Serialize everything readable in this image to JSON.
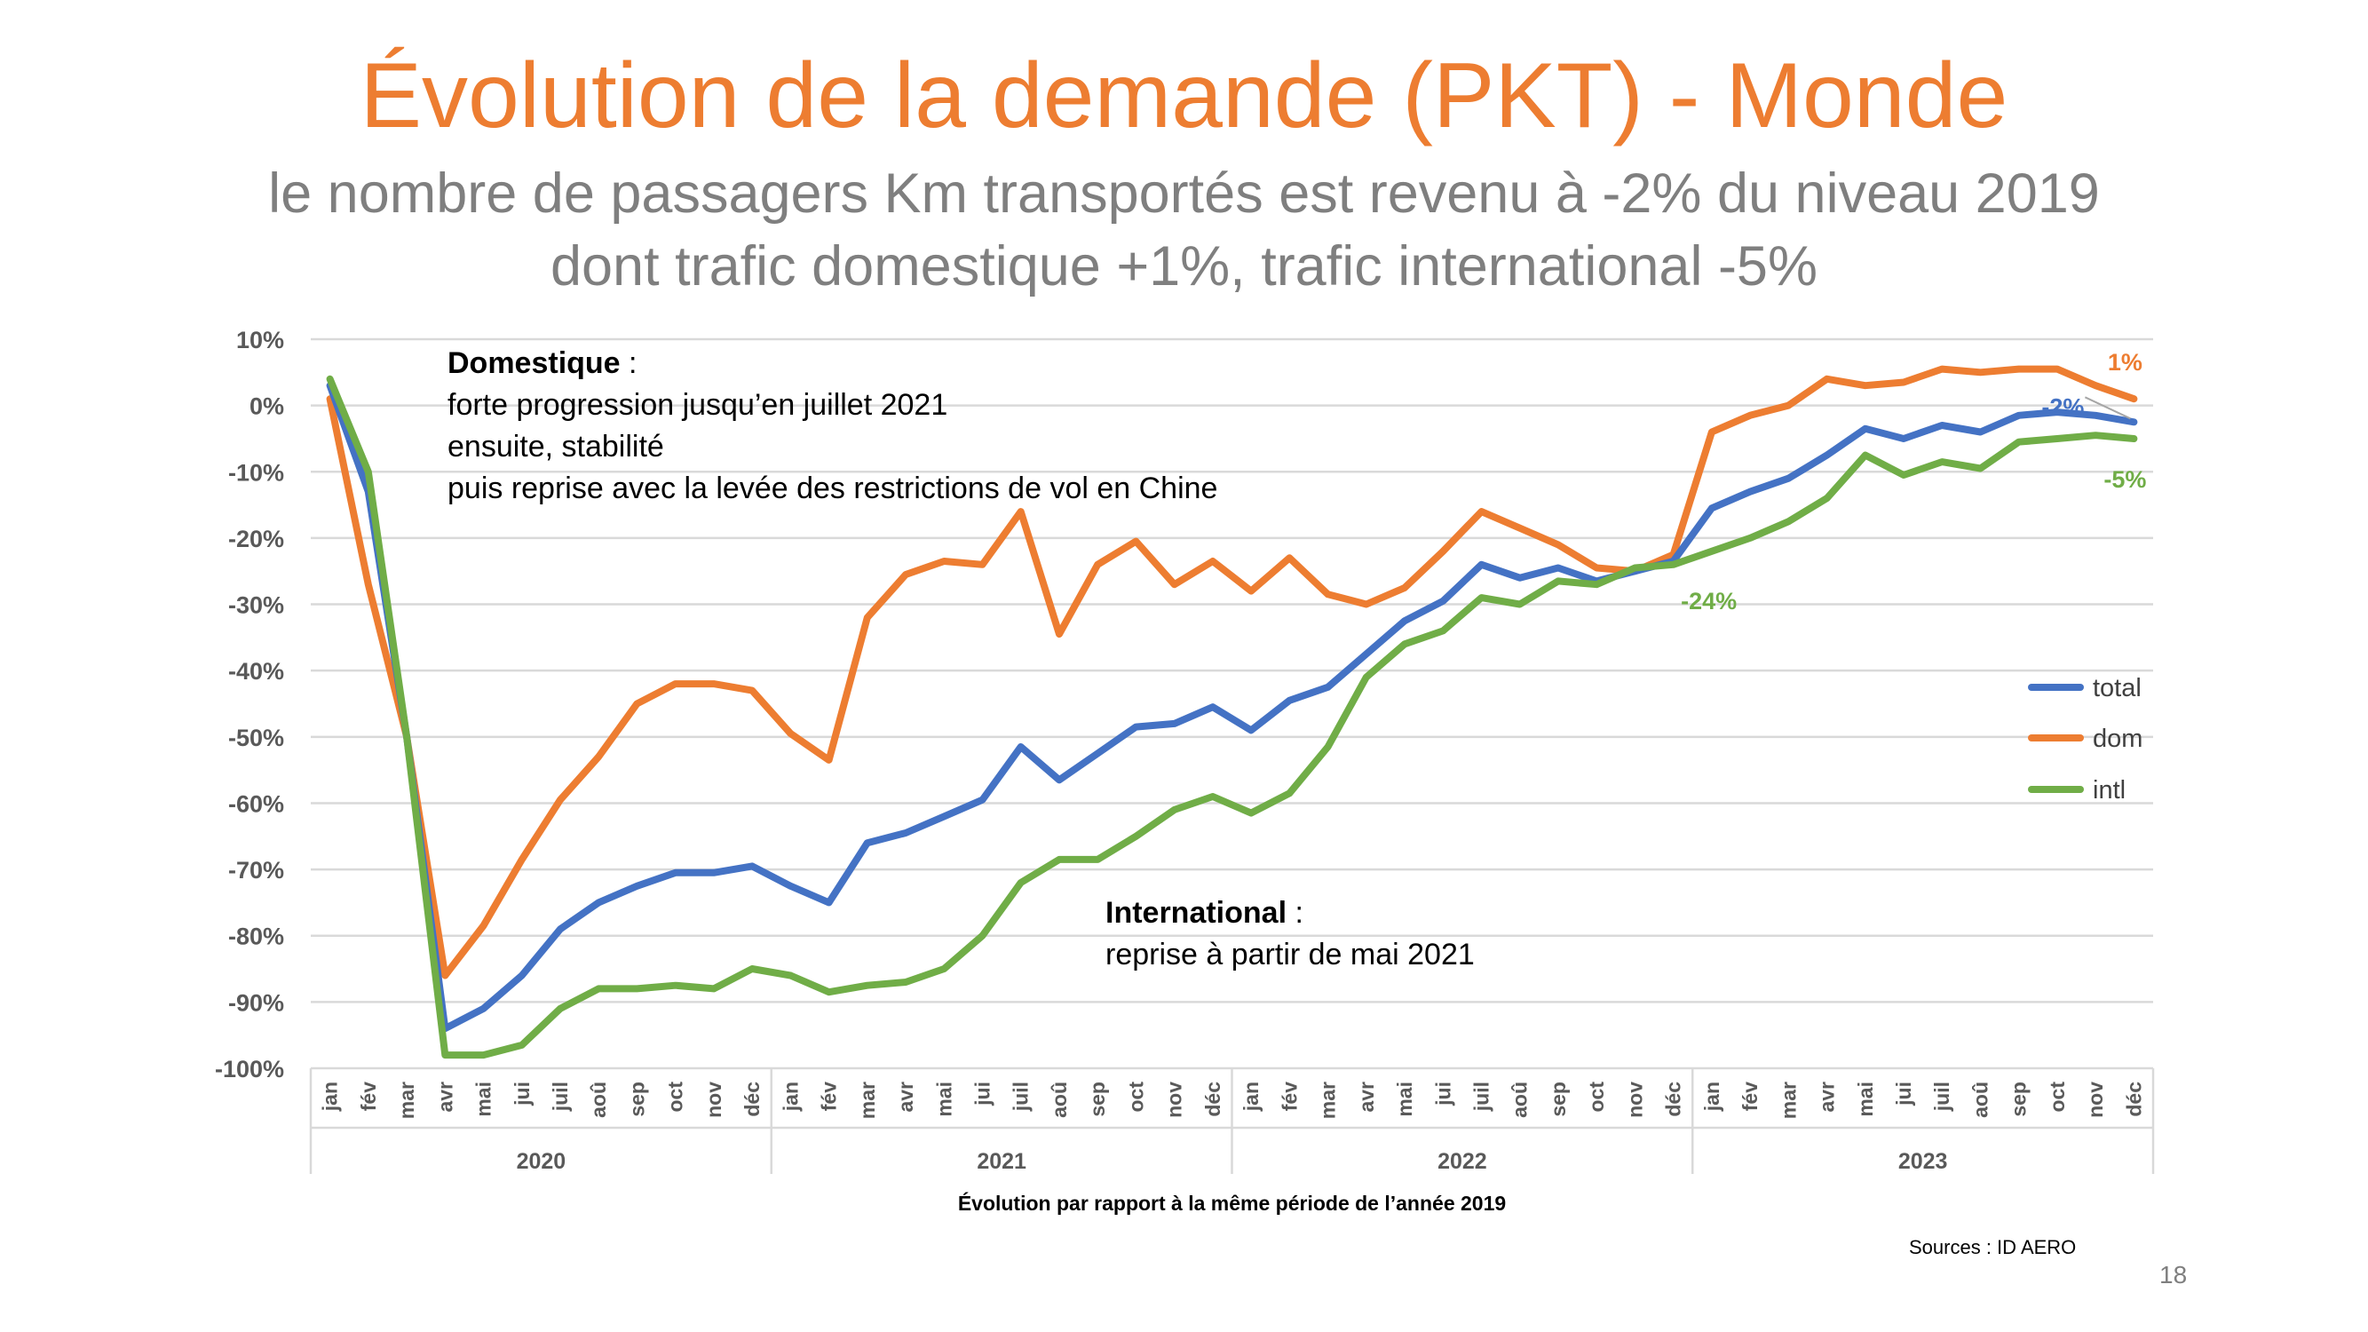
{
  "slide": {
    "title": "Évolution de la demande (PKT) - Monde",
    "subtitle_line1": "le nombre de passagers Km transportés est revenu à -2% du niveau 2019",
    "subtitle_line2": "dont trafic domestique +1%, trafic international -5%",
    "sources": "Sources : ID AERO",
    "page_number": "18"
  },
  "annotations": {
    "domestique_title": "Domestique",
    "domestique_colon": " :",
    "domestique_lines": [
      "forte progression jusqu’en juillet 2021",
      "ensuite, stabilité",
      "puis reprise avec la levée des restrictions de vol en Chine"
    ],
    "international_title": "International",
    "international_colon": " :",
    "international_lines": [
      "reprise à partir de mai 2021"
    ]
  },
  "colors": {
    "title": "#ED7D31",
    "subtitle": "#7F7F7F",
    "total": "#4472C4",
    "dom": "#ED7D31",
    "intl": "#70AD47",
    "grid": "#D9D9D9",
    "axis_text": "#595959"
  },
  "chart_data": {
    "type": "line",
    "xlabel": "Évolution par rapport à la même période de l’année 2019",
    "months": [
      "jan",
      "fév",
      "mar",
      "avr",
      "mai",
      "jui",
      "juil",
      "aoû",
      "sep",
      "oct",
      "nov",
      "déc"
    ],
    "years": [
      "2020",
      "2021",
      "2022",
      "2023"
    ],
    "y_ticks": [
      "10%",
      "0%",
      "-10%",
      "-20%",
      "-30%",
      "-40%",
      "-50%",
      "-60%",
      "-70%",
      "-80%",
      "-90%",
      "-100%"
    ],
    "ylim": [
      -100,
      10
    ],
    "legend_position": "right",
    "series": [
      {
        "name": "total",
        "color": "#4472C4",
        "values": [
          3,
          -13,
          -50,
          -94,
          -91,
          -86,
          -79,
          -75,
          -72.5,
          -70.5,
          -70.5,
          -69.5,
          -72.5,
          -75,
          -66,
          -64.5,
          -62,
          -59.5,
          -51.5,
          -56.5,
          -52.5,
          -48.5,
          -48,
          -45.5,
          -49,
          -44.5,
          -42.5,
          -37.5,
          -32.5,
          -29.5,
          -24,
          -26,
          -24.5,
          -26.5,
          -25,
          -23.5,
          -15.5,
          -13,
          -11,
          -7.5,
          -3.5,
          -5,
          -3,
          -4,
          -1.5,
          -1,
          -1.5,
          -2.5
        ]
      },
      {
        "name": "dom",
        "color": "#ED7D31",
        "values": [
          1,
          -27,
          -50,
          -86,
          -78.5,
          -68.5,
          -59.5,
          -53,
          -45,
          -42,
          -42,
          -43,
          -49.5,
          -53.5,
          -32,
          -25.5,
          -23.5,
          -24,
          -16,
          -34.5,
          -24,
          -20.5,
          -27,
          -23.5,
          -28,
          -23,
          -28.5,
          -30,
          -27.5,
          -22,
          -16,
          -18.5,
          -21,
          -24.5,
          -25,
          -22.5,
          -4,
          -1.5,
          0,
          4,
          3,
          3.5,
          5.5,
          5,
          5.5,
          5.5,
          3,
          1
        ]
      },
      {
        "name": "intl",
        "color": "#70AD47",
        "values": [
          4,
          -10,
          -50,
          -98,
          -98,
          -96.5,
          -91,
          -88,
          -88,
          -87.5,
          -88,
          -85,
          -86,
          -88.5,
          -87.5,
          -87,
          -85,
          -80,
          -72,
          -68.5,
          -68.5,
          -65,
          -61,
          -59,
          -61.5,
          -58.5,
          -51.5,
          -41,
          -36,
          -34,
          -29,
          -30,
          -26.5,
          -27,
          -24.5,
          -24,
          -22,
          -20,
          -17.5,
          -14,
          -7.5,
          -10.5,
          -8.5,
          -9.5,
          -5.5,
          -5,
          -4.5,
          -5
        ]
      }
    ],
    "data_labels": [
      {
        "series": "dom",
        "text": "1%"
      },
      {
        "series": "total",
        "text": "-2%"
      },
      {
        "series": "intl",
        "text": "-5%"
      },
      {
        "series": "intl",
        "text": "-24%"
      }
    ]
  }
}
